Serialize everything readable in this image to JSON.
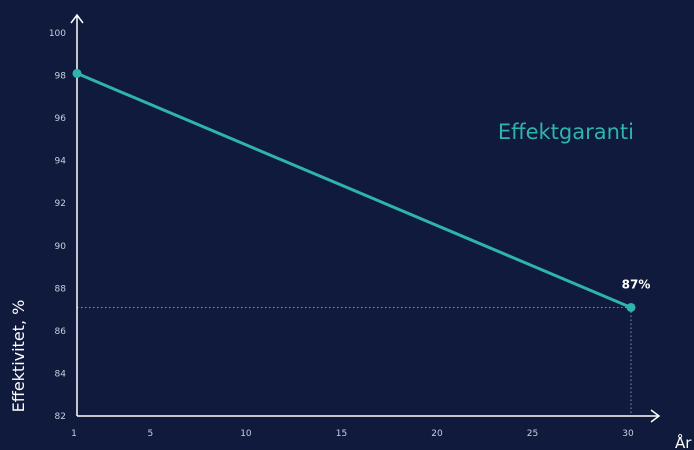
{
  "chart_data": {
    "type": "line",
    "xlabel": "År",
    "ylabel": "Effektivitet, %",
    "xlim": [
      1,
      30
    ],
    "ylim": [
      82,
      100
    ],
    "x_ticks": [
      1,
      5,
      10,
      15,
      20,
      25,
      30
    ],
    "y_ticks": [
      82,
      84,
      86,
      88,
      90,
      92,
      94,
      96,
      98,
      100
    ],
    "series": [
      {
        "name": "Effektgaranti",
        "x": [
          1,
          30
        ],
        "y": [
          98.1,
          87.1
        ],
        "color": "#2fb3ad"
      }
    ],
    "annotations": [
      {
        "text": "87%",
        "x": 30,
        "y": 87.1
      }
    ],
    "grid": false,
    "legend_position": "top-right",
    "background": "#0f1a3d"
  }
}
